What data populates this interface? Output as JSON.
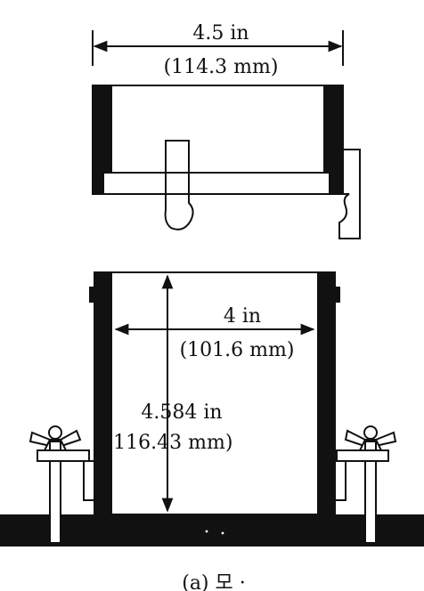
{
  "top_view": {
    "dimension_primary": "4.5 in",
    "dimension_secondary": "(114.3 mm)"
  },
  "bottom_view": {
    "inner_diameter_primary": "4 in",
    "inner_diameter_secondary": "(101.6 mm)",
    "height_primary": "4.584 in",
    "height_secondary": "(116.43 mm)"
  },
  "caption": "(a) 모 ·",
  "colors": {
    "ink": "#111111",
    "paper": "#ffffff"
  }
}
